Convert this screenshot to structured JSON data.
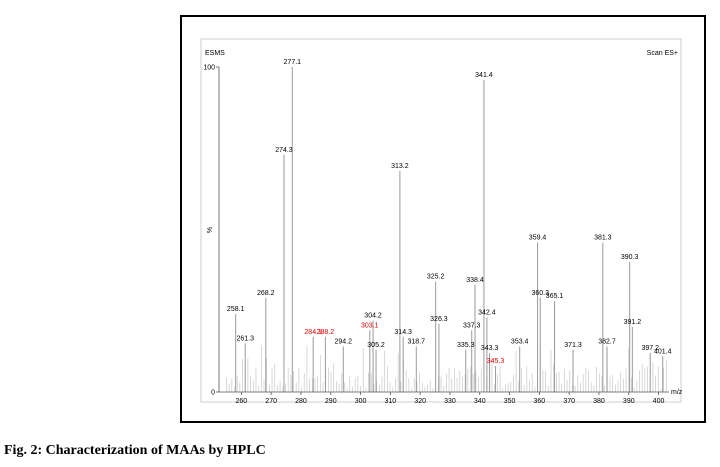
{
  "caption": "Fig. 2: Characterization of MAAs by HPLC",
  "chart_data": {
    "type": "bar",
    "title_left": "ESMS",
    "title_right": "Scan ES+",
    "xlabel": "m/z",
    "ylabel": "%",
    "xlim": [
      252.5,
      403.5
    ],
    "ylim": [
      0,
      100
    ],
    "yticks": [
      "0",
      "100"
    ],
    "xticks": [
      "260",
      "270",
      "280",
      "290",
      "300",
      "310",
      "320",
      "330",
      "340",
      "350",
      "360",
      "370",
      "380",
      "390",
      "400"
    ],
    "peak_color": "#9a9a9a",
    "label_color": "#000000",
    "highlight_color": "#e00000",
    "peaks": [
      {
        "mz": 258.1,
        "intensity": 24,
        "label": "258.1",
        "highlight": false
      },
      {
        "mz": 261.3,
        "intensity": 15,
        "label": "261.3",
        "highlight": false
      },
      {
        "mz": 268.2,
        "intensity": 29,
        "label": "268.2",
        "highlight": false
      },
      {
        "mz": 274.3,
        "intensity": 73,
        "label": "274.3",
        "highlight": false
      },
      {
        "mz": 277.1,
        "intensity": 100,
        "label": "277.1",
        "highlight": false
      },
      {
        "mz": 284.1,
        "intensity": 17,
        "label": "284.1",
        "highlight": true
      },
      {
        "mz": 288.2,
        "intensity": 17,
        "label": "288.2",
        "highlight": true
      },
      {
        "mz": 294.2,
        "intensity": 14,
        "label": "294.2",
        "highlight": false
      },
      {
        "mz": 303.1,
        "intensity": 19,
        "label": "303.1",
        "highlight": true
      },
      {
        "mz": 304.2,
        "intensity": 22,
        "label": "304.2",
        "highlight": false
      },
      {
        "mz": 305.2,
        "intensity": 13,
        "label": "305.2",
        "highlight": false
      },
      {
        "mz": 313.2,
        "intensity": 68,
        "label": "313.2",
        "highlight": false
      },
      {
        "mz": 314.3,
        "intensity": 17,
        "label": "314.3",
        "highlight": false
      },
      {
        "mz": 318.7,
        "intensity": 14,
        "label": "318.7",
        "highlight": false
      },
      {
        "mz": 325.2,
        "intensity": 34,
        "label": "325.2",
        "highlight": false
      },
      {
        "mz": 326.3,
        "intensity": 21,
        "label": "326.3",
        "highlight": false
      },
      {
        "mz": 335.3,
        "intensity": 13,
        "label": "335.3",
        "highlight": false
      },
      {
        "mz": 337.3,
        "intensity": 19,
        "label": "337.3",
        "highlight": false
      },
      {
        "mz": 338.4,
        "intensity": 33,
        "label": "338.4",
        "highlight": false
      },
      {
        "mz": 341.4,
        "intensity": 96,
        "label": "341.4",
        "highlight": false
      },
      {
        "mz": 342.4,
        "intensity": 23,
        "label": "342.4",
        "highlight": false
      },
      {
        "mz": 343.3,
        "intensity": 12,
        "label": "343.3",
        "highlight": false
      },
      {
        "mz": 345.3,
        "intensity": 8,
        "label": "345.3",
        "highlight": true
      },
      {
        "mz": 353.4,
        "intensity": 14,
        "label": "353.4",
        "highlight": false
      },
      {
        "mz": 359.4,
        "intensity": 46,
        "label": "359.4",
        "highlight": false
      },
      {
        "mz": 360.3,
        "intensity": 29,
        "label": "360.3",
        "highlight": false
      },
      {
        "mz": 365.1,
        "intensity": 28,
        "label": "365.1",
        "highlight": false
      },
      {
        "mz": 371.3,
        "intensity": 13,
        "label": "371.3",
        "highlight": false
      },
      {
        "mz": 381.3,
        "intensity": 46,
        "label": "381.3",
        "highlight": false
      },
      {
        "mz": 382.7,
        "intensity": 14,
        "label": "382.7",
        "highlight": false
      },
      {
        "mz": 390.3,
        "intensity": 40,
        "label": "390.3",
        "highlight": false
      },
      {
        "mz": 391.2,
        "intensity": 20,
        "label": "391.2",
        "highlight": false
      },
      {
        "mz": 397.2,
        "intensity": 12,
        "label": "397.2",
        "highlight": false
      },
      {
        "mz": 401.4,
        "intensity": 11,
        "label": "401.4",
        "highlight": false
      }
    ]
  }
}
